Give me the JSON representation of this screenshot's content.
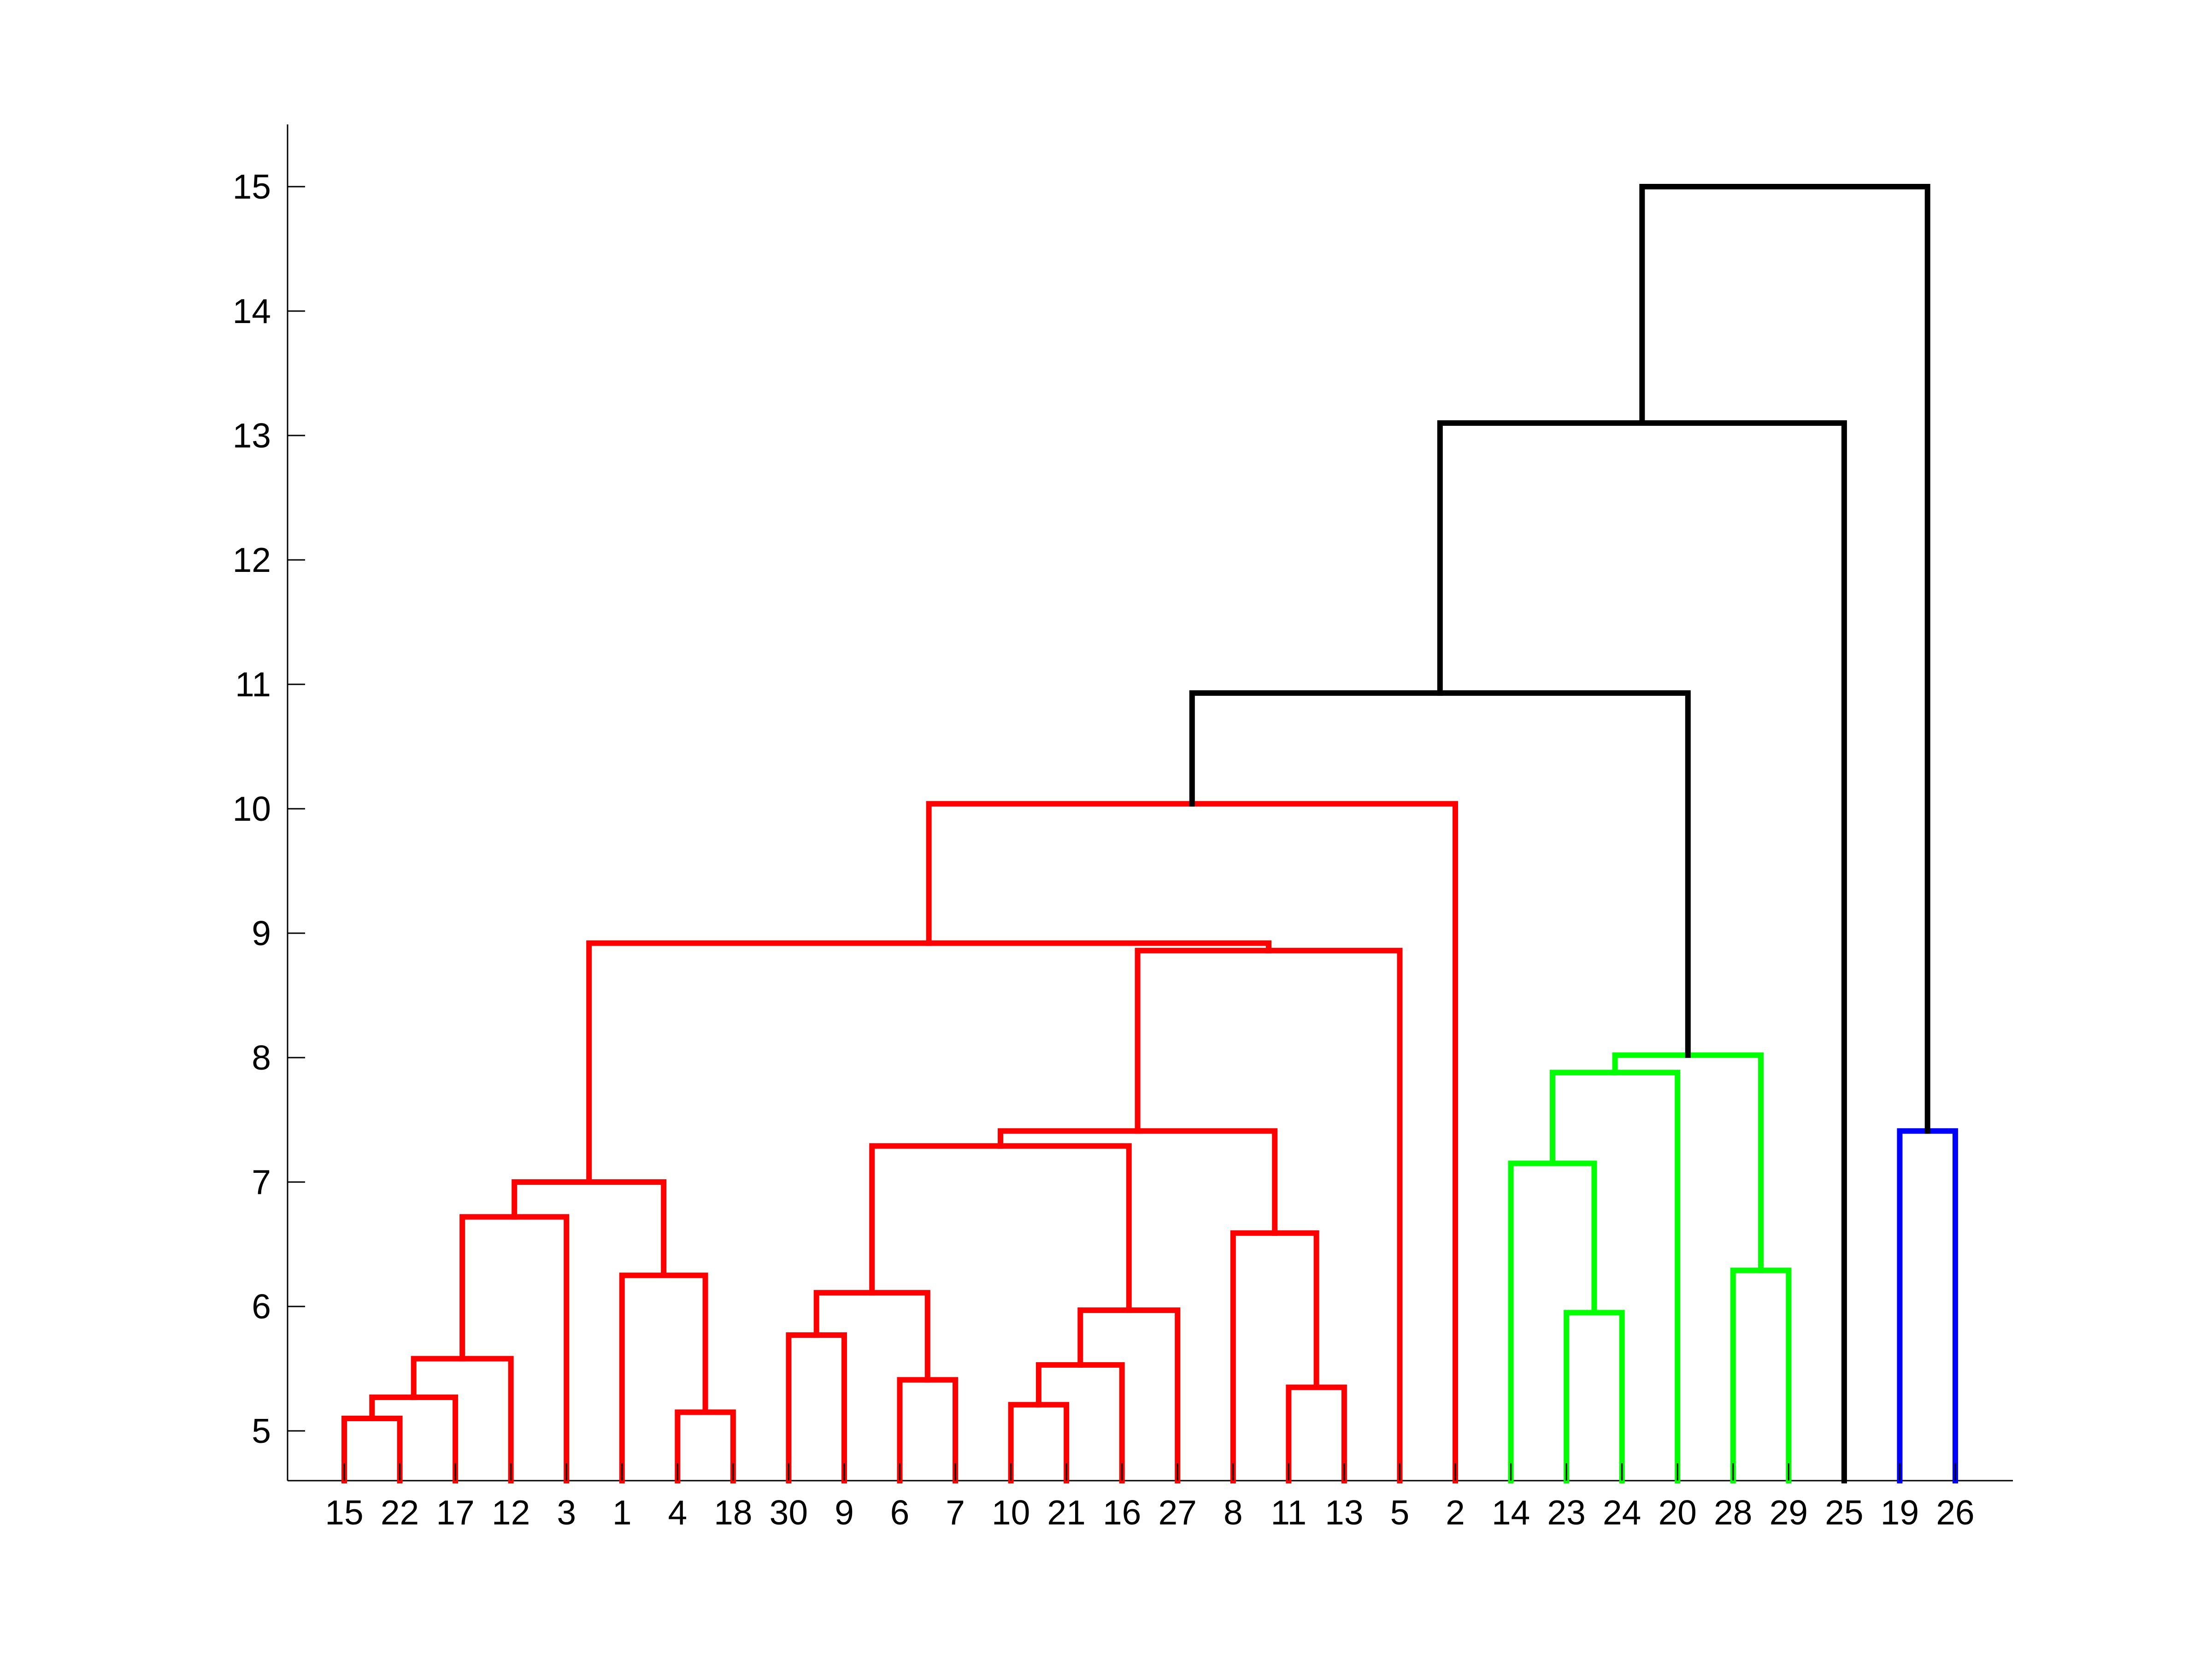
{
  "chart_data": {
    "type": "dendrogram",
    "title": "",
    "xlabel": "",
    "ylabel": "",
    "ylim": [
      4.6,
      15.5
    ],
    "yticks": [
      5,
      6,
      7,
      8,
      9,
      10,
      11,
      12,
      13,
      14,
      15
    ],
    "leaf_order": [
      15,
      22,
      17,
      12,
      3,
      1,
      4,
      18,
      30,
      9,
      6,
      7,
      10,
      21,
      16,
      27,
      8,
      11,
      13,
      5,
      2,
      14,
      23,
      24,
      20,
      28,
      29,
      25,
      19,
      26
    ],
    "colors": {
      "cluster_a": "#ff0000",
      "cluster_b": "#00ff00",
      "cluster_c": "#0000ff",
      "above_threshold": "#000000"
    },
    "merges": [
      {
        "left": "L:15",
        "right": "L:22",
        "height": 5.1,
        "color": "cluster_a"
      },
      {
        "left": "M:0",
        "right": "L:17",
        "height": 5.27,
        "color": "cluster_a"
      },
      {
        "left": "M:1",
        "right": "L:12",
        "height": 5.58,
        "color": "cluster_a"
      },
      {
        "left": "M:2",
        "right": "L:3",
        "height": 6.72,
        "color": "cluster_a"
      },
      {
        "left": "L:4",
        "right": "L:18",
        "height": 5.15,
        "color": "cluster_a"
      },
      {
        "left": "L:1",
        "right": "M:4",
        "height": 6.25,
        "color": "cluster_a"
      },
      {
        "left": "M:3",
        "right": "M:5",
        "height": 7.0,
        "color": "cluster_a"
      },
      {
        "left": "L:30",
        "right": "L:9",
        "height": 5.77,
        "color": "cluster_a"
      },
      {
        "left": "L:6",
        "right": "L:7",
        "height": 5.41,
        "color": "cluster_a"
      },
      {
        "left": "M:7",
        "right": "M:8",
        "height": 6.11,
        "color": "cluster_a"
      },
      {
        "left": "L:10",
        "right": "L:21",
        "height": 5.21,
        "color": "cluster_a"
      },
      {
        "left": "M:10",
        "right": "L:16",
        "height": 5.53,
        "color": "cluster_a"
      },
      {
        "left": "M:11",
        "right": "L:27",
        "height": 5.97,
        "color": "cluster_a"
      },
      {
        "left": "M:9",
        "right": "M:12",
        "height": 7.29,
        "color": "cluster_a"
      },
      {
        "left": "L:11",
        "right": "L:13",
        "height": 5.35,
        "color": "cluster_a"
      },
      {
        "left": "L:8",
        "right": "M:14",
        "height": 6.59,
        "color": "cluster_a"
      },
      {
        "left": "M:13",
        "right": "M:15",
        "height": 7.41,
        "color": "cluster_a"
      },
      {
        "left": "M:16",
        "right": "L:5",
        "height": 8.86,
        "color": "cluster_a"
      },
      {
        "left": "M:6",
        "right": "M:17",
        "height": 8.92,
        "color": "cluster_a"
      },
      {
        "left": "M:18",
        "right": "L:2",
        "height": 10.04,
        "color": "cluster_a"
      },
      {
        "left": "L:23",
        "right": "L:24",
        "height": 5.95,
        "color": "cluster_b"
      },
      {
        "left": "L:14",
        "right": "M:20",
        "height": 7.15,
        "color": "cluster_b"
      },
      {
        "left": "M:21",
        "right": "L:20",
        "height": 7.88,
        "color": "cluster_b"
      },
      {
        "left": "L:28",
        "right": "L:29",
        "height": 6.29,
        "color": "cluster_b"
      },
      {
        "left": "M:22",
        "right": "M:23",
        "height": 8.02,
        "color": "cluster_b"
      },
      {
        "left": "M:19",
        "right": "M:24",
        "height": 10.93,
        "color": "above_threshold"
      },
      {
        "left": "M:25",
        "right": "L:25",
        "height": 13.1,
        "color": "above_threshold"
      },
      {
        "left": "L:19",
        "right": "L:26",
        "height": 7.41,
        "color": "cluster_c"
      },
      {
        "left": "M:26",
        "right": "M:27",
        "height": 15.0,
        "color": "above_threshold"
      }
    ]
  }
}
